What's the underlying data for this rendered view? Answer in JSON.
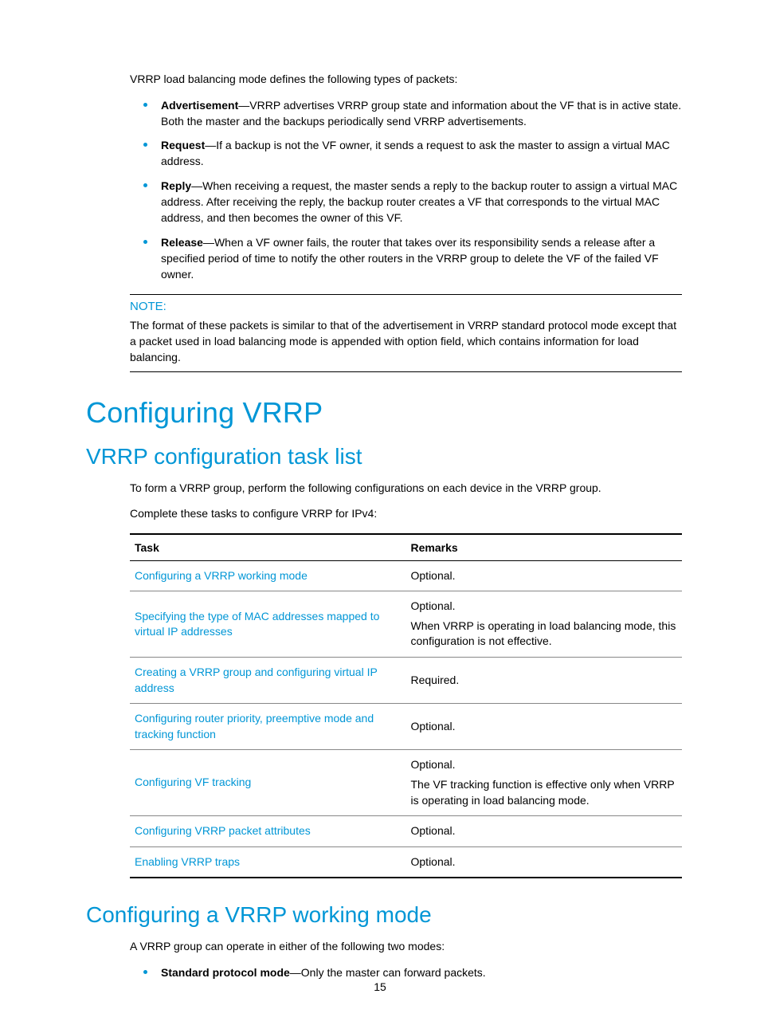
{
  "intro": "VRRP load balancing mode defines the following types of packets:",
  "packets": [
    {
      "term": "Advertisement",
      "desc": "—VRRP advertises VRRP group state and information about the VF that is in active state. Both the master and the backups periodically send VRRP advertisements."
    },
    {
      "term": "Request",
      "desc": "—If a backup is not the VF owner, it sends a request to ask the master to assign a virtual MAC address."
    },
    {
      "term": "Reply",
      "desc": "—When receiving a request, the master sends a reply to the backup router to assign a virtual MAC address. After receiving the reply, the backup router creates a VF that corresponds to the virtual MAC address, and then becomes the owner of this VF."
    },
    {
      "term": "Release",
      "desc": "—When a VF owner fails, the router that takes over its responsibility sends a release after a specified period of time to notify the other routers in the VRRP group to delete the VF of the failed VF owner."
    }
  ],
  "note": {
    "label": "NOTE:",
    "text": "The format of these packets is similar to that of the advertisement in VRRP standard protocol mode except that a packet used in load balancing mode is appended with option field, which contains information for load balancing."
  },
  "h1": "Configuring VRRP",
  "h2a": "VRRP configuration task list",
  "p1": "To form a VRRP group, perform the following configurations on each device in the VRRP group.",
  "p2": "Complete these tasks to configure VRRP for IPv4:",
  "table": {
    "headers": [
      "Task",
      "Remarks"
    ],
    "rows": [
      {
        "task": "Configuring a VRRP working mode",
        "remarks": [
          "Optional."
        ]
      },
      {
        "task": "Specifying the type of MAC addresses mapped to virtual IP addresses",
        "remarks": [
          "Optional.",
          "When VRRP is operating in load balancing mode, this configuration is not effective."
        ]
      },
      {
        "task": "Creating a VRRP group and configuring virtual IP address",
        "remarks": [
          "Required."
        ]
      },
      {
        "task": "Configuring router priority, preemptive mode and tracking function",
        "remarks": [
          "Optional."
        ]
      },
      {
        "task": "Configuring VF tracking",
        "remarks": [
          "Optional.",
          "The VF tracking function is effective only when VRRP is operating in load balancing mode."
        ]
      },
      {
        "task": "Configuring VRRP packet attributes",
        "remarks": [
          "Optional."
        ]
      },
      {
        "task": "Enabling VRRP traps",
        "remarks": [
          "Optional."
        ]
      }
    ]
  },
  "h2b": "Configuring a VRRP working mode",
  "p3": "A VRRP group can operate in either of the following two modes:",
  "mode": {
    "term": "Standard protocol mode",
    "desc": "—Only the master can forward packets."
  },
  "pageNum": "15",
  "colors": {
    "accent": "#0096d6",
    "text": "#000000",
    "background": "#ffffff",
    "rowBorder": "#888888"
  }
}
